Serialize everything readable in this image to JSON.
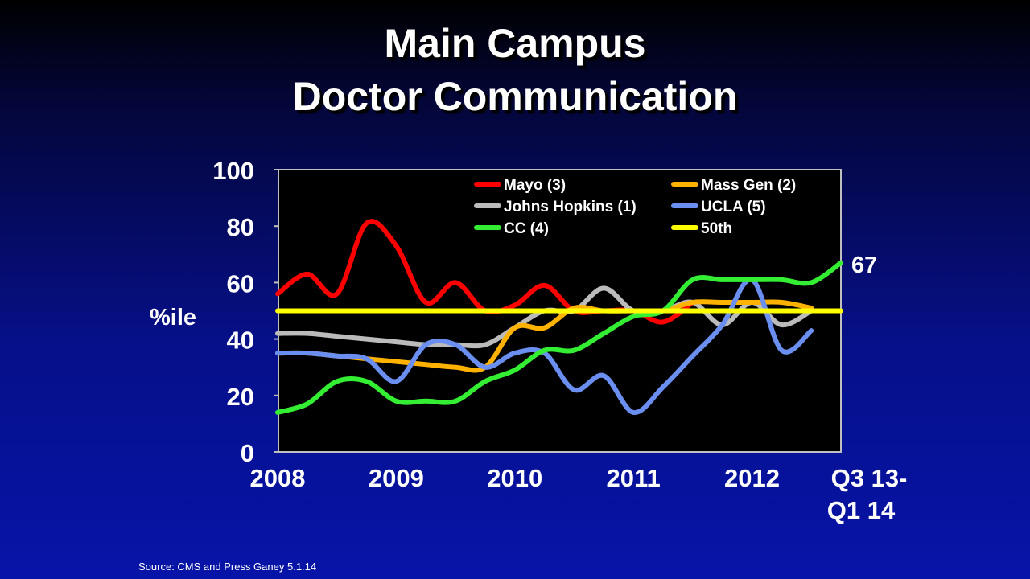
{
  "title_line1": "Main Campus",
  "title_line2": "Doctor Communication",
  "source": "Source: CMS and Press Ganey 5.1.14",
  "chart_data": {
    "type": "line",
    "ylabel": "%ile",
    "ylim": [
      0,
      100
    ],
    "yticks": [
      0,
      20,
      40,
      60,
      80,
      100
    ],
    "xlim": [
      2008,
      2012.75
    ],
    "xticks": [
      {
        "x": 2008,
        "label": "2008"
      },
      {
        "x": 2009,
        "label": "2009"
      },
      {
        "x": 2010,
        "label": "2010"
      },
      {
        "x": 2011,
        "label": "2011"
      },
      {
        "x": 2012,
        "label": "2012"
      }
    ],
    "xtick_last": {
      "line1": "Q3 13-",
      "line2": "Q1 14"
    },
    "annotation": "67",
    "grid": false,
    "legend_position": "top-right",
    "series": [
      {
        "name": "Mayo (3)",
        "color": "#ff0000",
        "x": [
          2008,
          2008.25,
          2008.5,
          2008.75,
          2009,
          2009.25,
          2009.5,
          2009.75,
          2010,
          2010.25,
          2010.5,
          2010.75,
          2011,
          2011.25,
          2011.5
        ],
        "y": [
          56,
          63,
          56,
          81,
          73,
          53,
          60,
          50,
          52,
          59,
          50,
          50,
          50,
          46,
          53
        ]
      },
      {
        "name": "Mass Gen (2)",
        "color": "#ffb300",
        "x": [
          2008,
          2008.25,
          2008.5,
          2008.75,
          2009,
          2009.25,
          2009.5,
          2009.75,
          2010,
          2010.25,
          2010.5,
          2010.75,
          2011,
          2011.25,
          2011.5,
          2011.75,
          2012,
          2012.25,
          2012.5
        ],
        "y": [
          35,
          35,
          34,
          33,
          32,
          31,
          30,
          30,
          44,
          44,
          51,
          50,
          50,
          50,
          53,
          53,
          53,
          53,
          51
        ]
      },
      {
        "name": "Johns Hopkins (1)",
        "color": "#bbbbbb",
        "x": [
          2008,
          2008.25,
          2008.5,
          2008.75,
          2009,
          2009.25,
          2009.5,
          2009.75,
          2010,
          2010.25,
          2010.5,
          2010.75,
          2011,
          2011.25,
          2011.5,
          2011.75,
          2012,
          2012.25,
          2012.5
        ],
        "y": [
          42,
          42,
          41,
          40,
          39,
          38,
          38,
          38,
          44,
          50,
          50,
          58,
          50,
          50,
          53,
          45,
          53,
          45,
          50
        ]
      },
      {
        "name": "UCLA (5)",
        "color": "#6a8ff0",
        "x": [
          2008,
          2008.25,
          2008.5,
          2008.75,
          2009,
          2009.25,
          2009.5,
          2009.75,
          2010,
          2010.25,
          2010.5,
          2010.75,
          2011,
          2011.25,
          2011.5,
          2011.75,
          2012,
          2012.25,
          2012.5
        ],
        "y": [
          35,
          35,
          34,
          33,
          25,
          38,
          38,
          30,
          35,
          35,
          22,
          27,
          14,
          23,
          34,
          45,
          61,
          36,
          43
        ]
      },
      {
        "name": "CC (4)",
        "color": "#33ee33",
        "x": [
          2008,
          2008.25,
          2008.5,
          2008.75,
          2009,
          2009.25,
          2009.5,
          2009.75,
          2010,
          2010.25,
          2010.5,
          2010.75,
          2011,
          2011.25,
          2011.5,
          2011.75,
          2012,
          2012.25,
          2012.5,
          2012.75
        ],
        "y": [
          14,
          17,
          25,
          25,
          18,
          18,
          18,
          25,
          29,
          36,
          36,
          42,
          48,
          50,
          61,
          61,
          61,
          61,
          60,
          67
        ]
      },
      {
        "name": "50th",
        "color": "#ffff00",
        "x": [
          2008,
          2012.75
        ],
        "y": [
          50,
          50
        ]
      }
    ]
  }
}
